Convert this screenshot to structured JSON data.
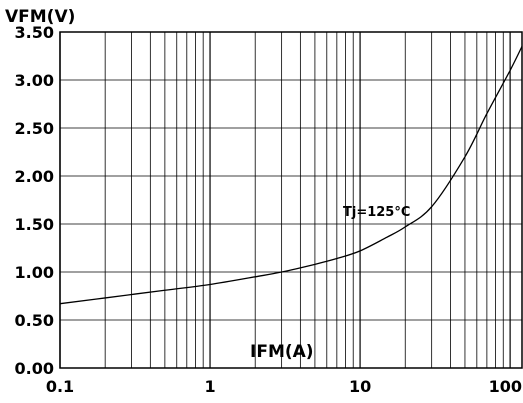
{
  "chart_data": {
    "type": "line",
    "xlabel": "IFM(A)",
    "ylabel": "VFM(V)",
    "xscale": "log",
    "xlim": [
      0.1,
      120
    ],
    "ylim": [
      0,
      3.5
    ],
    "grid": true,
    "x_ticks": [
      {
        "value": 0.1,
        "label": "0.1"
      },
      {
        "value": 1,
        "label": "1"
      },
      {
        "value": 10,
        "label": "10"
      },
      {
        "value": 100,
        "label": "100"
      }
    ],
    "y_ticks": [
      {
        "value": 0.0,
        "label": "0.00"
      },
      {
        "value": 0.5,
        "label": "0.50"
      },
      {
        "value": 1.0,
        "label": "1.00"
      },
      {
        "value": 1.5,
        "label": "1.50"
      },
      {
        "value": 2.0,
        "label": "2.00"
      },
      {
        "value": 2.5,
        "label": "2.50"
      },
      {
        "value": 3.0,
        "label": "3.00"
      },
      {
        "value": 3.5,
        "label": "3.50"
      }
    ],
    "series": [
      {
        "name": "Tj=125°C",
        "x": [
          0.1,
          0.2,
          0.5,
          1,
          2,
          3,
          5,
          7,
          10,
          15,
          20,
          30,
          50,
          70,
          100,
          120
        ],
        "y": [
          0.67,
          0.73,
          0.81,
          0.87,
          0.95,
          1.0,
          1.08,
          1.14,
          1.22,
          1.36,
          1.47,
          1.68,
          2.2,
          2.65,
          3.1,
          3.35
        ]
      }
    ],
    "annotations": [
      {
        "text": "Tj=125°C",
        "x": 25,
        "y": 1.6
      }
    ]
  }
}
